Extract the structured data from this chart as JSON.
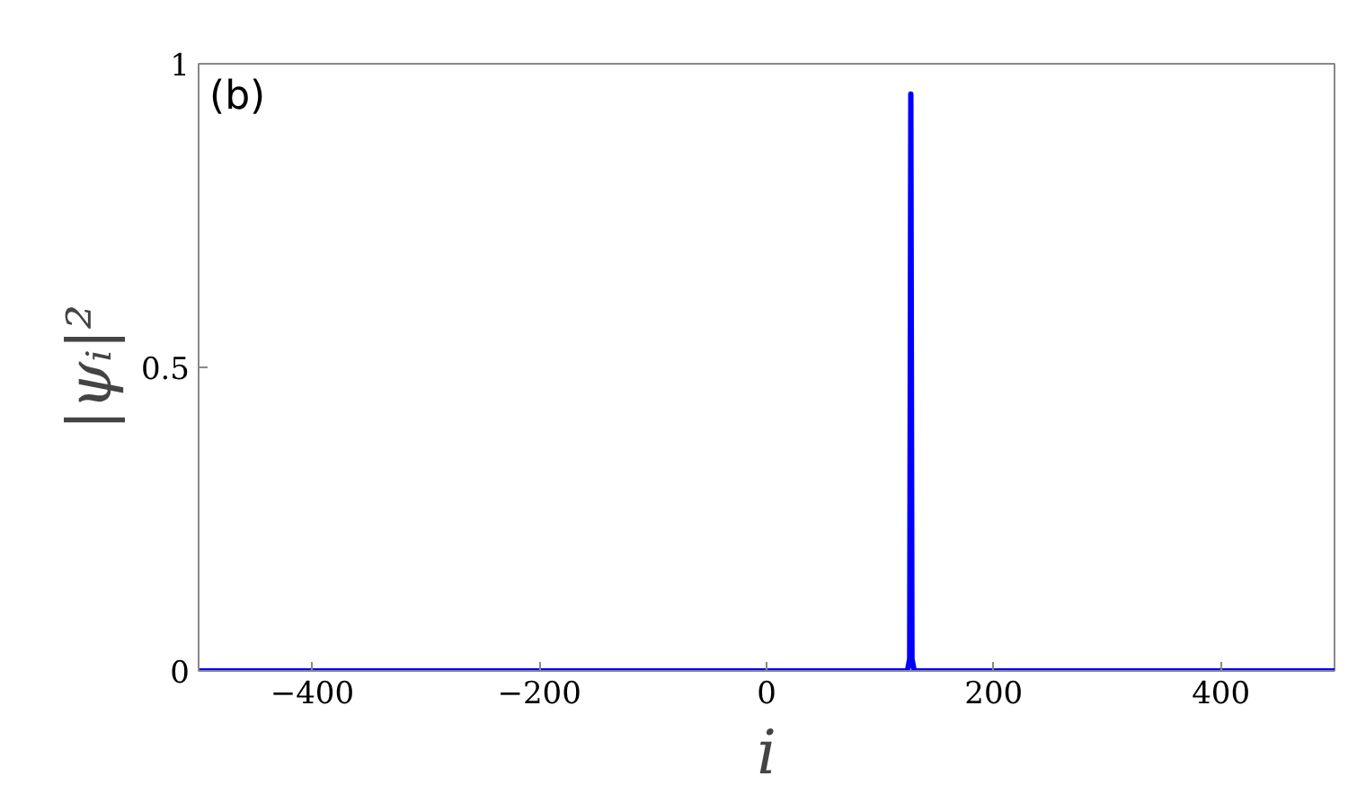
{
  "chart_data": {
    "type": "line",
    "xlabel": "i",
    "ylabel": "|ψᵢ|²",
    "annotations": [
      "(b)"
    ],
    "series": [
      {
        "color": "#0000ff",
        "x": [
          -500,
          124,
          126,
          127,
          128,
          130,
          500
        ],
        "values": [
          0,
          0,
          0.02,
          0.95,
          0.02,
          0,
          0
        ]
      }
    ],
    "xlim": [
      -500,
      500
    ],
    "xticks": [
      {
        "value": -400,
        "label": "−400"
      },
      {
        "value": -200,
        "label": "−200"
      },
      0,
      200,
      400
    ],
    "ylim": [
      0,
      1
    ],
    "yticks": [
      0,
      0.5,
      1
    ],
    "grid": false,
    "marker": "none",
    "line_style": "solid"
  }
}
